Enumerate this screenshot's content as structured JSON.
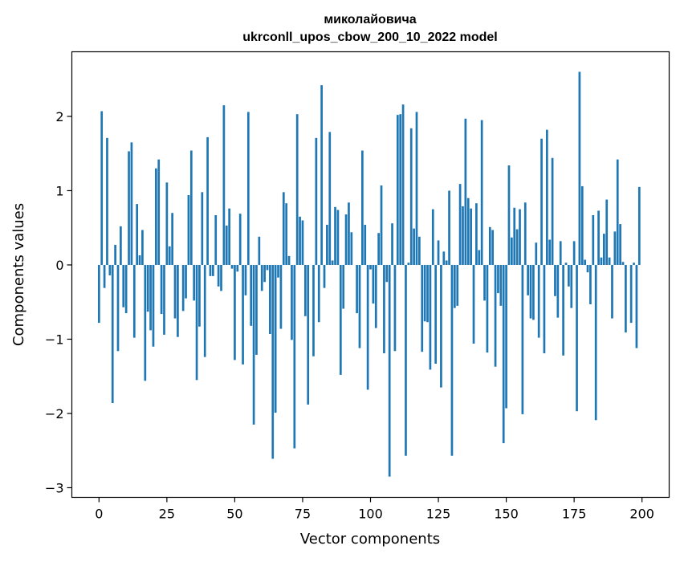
{
  "chart_data": {
    "type": "bar",
    "title_line1": "миколайовича",
    "title_line2": "ukrconll_upos_cbow_200_10_2022 model",
    "xlabel": "Vector components",
    "ylabel": "Components values",
    "xlim": [
      -10,
      210
    ],
    "ylim": [
      -3.13,
      2.87
    ],
    "xticks": [
      0,
      25,
      50,
      75,
      100,
      125,
      150,
      175,
      200
    ],
    "yticks": [
      -3,
      -2,
      -1,
      0,
      1,
      2
    ],
    "xtick_labels": [
      "0",
      "25",
      "50",
      "75",
      "100",
      "125",
      "150",
      "175",
      "200"
    ],
    "ytick_labels": [
      "−3",
      "−2",
      "−1",
      "0",
      "1",
      "2"
    ],
    "bar_color": "#1f77b4",
    "grid": false,
    "legend": "none",
    "values": [
      -0.78,
      2.07,
      -0.31,
      1.71,
      -0.14,
      -1.86,
      0.27,
      -1.16,
      0.52,
      -0.57,
      -0.65,
      1.53,
      1.65,
      -0.98,
      0.82,
      0.13,
      0.47,
      -1.56,
      -0.63,
      -0.88,
      -1.1,
      1.3,
      1.42,
      -0.66,
      -0.94,
      1.11,
      0.25,
      0.7,
      -0.72,
      -0.97,
      0.0,
      -0.62,
      -0.45,
      0.94,
      1.54,
      -0.48,
      -1.55,
      -0.83,
      0.98,
      -1.24,
      1.72,
      -0.15,
      -0.15,
      0.67,
      -0.29,
      -0.35,
      2.15,
      0.53,
      0.76,
      -0.05,
      -1.28,
      -0.09,
      0.69,
      -1.34,
      -0.41,
      2.06,
      -0.82,
      -2.15,
      -1.21,
      0.38,
      -0.35,
      -0.23,
      -0.07,
      -0.93,
      -2.61,
      -1.99,
      -0.17,
      -0.86,
      0.98,
      0.83,
      0.12,
      -1.01,
      -2.47,
      2.03,
      0.65,
      0.6,
      -0.69,
      -1.88,
      0.0,
      -1.23,
      1.71,
      -0.77,
      2.42,
      -0.31,
      0.54,
      1.79,
      0.06,
      0.78,
      0.74,
      -1.48,
      -0.59,
      0.68,
      0.84,
      0.44,
      0.0,
      -0.65,
      -1.12,
      1.54,
      0.54,
      -1.68,
      -0.06,
      -0.52,
      -0.85,
      0.43,
      1.07,
      -1.19,
      -0.23,
      -2.85,
      0.56,
      -1.16,
      2.02,
      2.03,
      2.16,
      -2.57,
      0.03,
      1.84,
      0.49,
      2.06,
      0.38,
      -1.17,
      -0.76,
      -0.77,
      -1.41,
      0.75,
      -1.33,
      0.33,
      -1.65,
      0.18,
      0.06,
      1.0,
      -2.57,
      -0.58,
      -0.55,
      1.09,
      0.79,
      1.97,
      0.9,
      0.76,
      -1.06,
      0.83,
      0.2,
      1.95,
      -0.48,
      -1.18,
      0.51,
      0.47,
      -1.37,
      -0.38,
      -0.55,
      -2.4,
      -1.93,
      1.34,
      0.37,
      0.77,
      0.48,
      0.75,
      -2.01,
      0.84,
      -0.41,
      -0.72,
      -0.74,
      0.3,
      -0.98,
      1.7,
      -1.19,
      1.82,
      0.34,
      1.44,
      -0.42,
      -0.71,
      0.32,
      -1.22,
      0.03,
      -0.29,
      -0.58,
      0.32,
      -1.97,
      2.6,
      1.06,
      0.07,
      -0.1,
      -0.53,
      0.67,
      -2.09,
      0.73,
      0.1,
      0.42,
      0.88,
      0.1,
      -0.72,
      0.45,
      1.42,
      0.55,
      0.04,
      -0.91,
      0.0,
      -0.78,
      0.03,
      -1.12,
      1.05
    ]
  }
}
